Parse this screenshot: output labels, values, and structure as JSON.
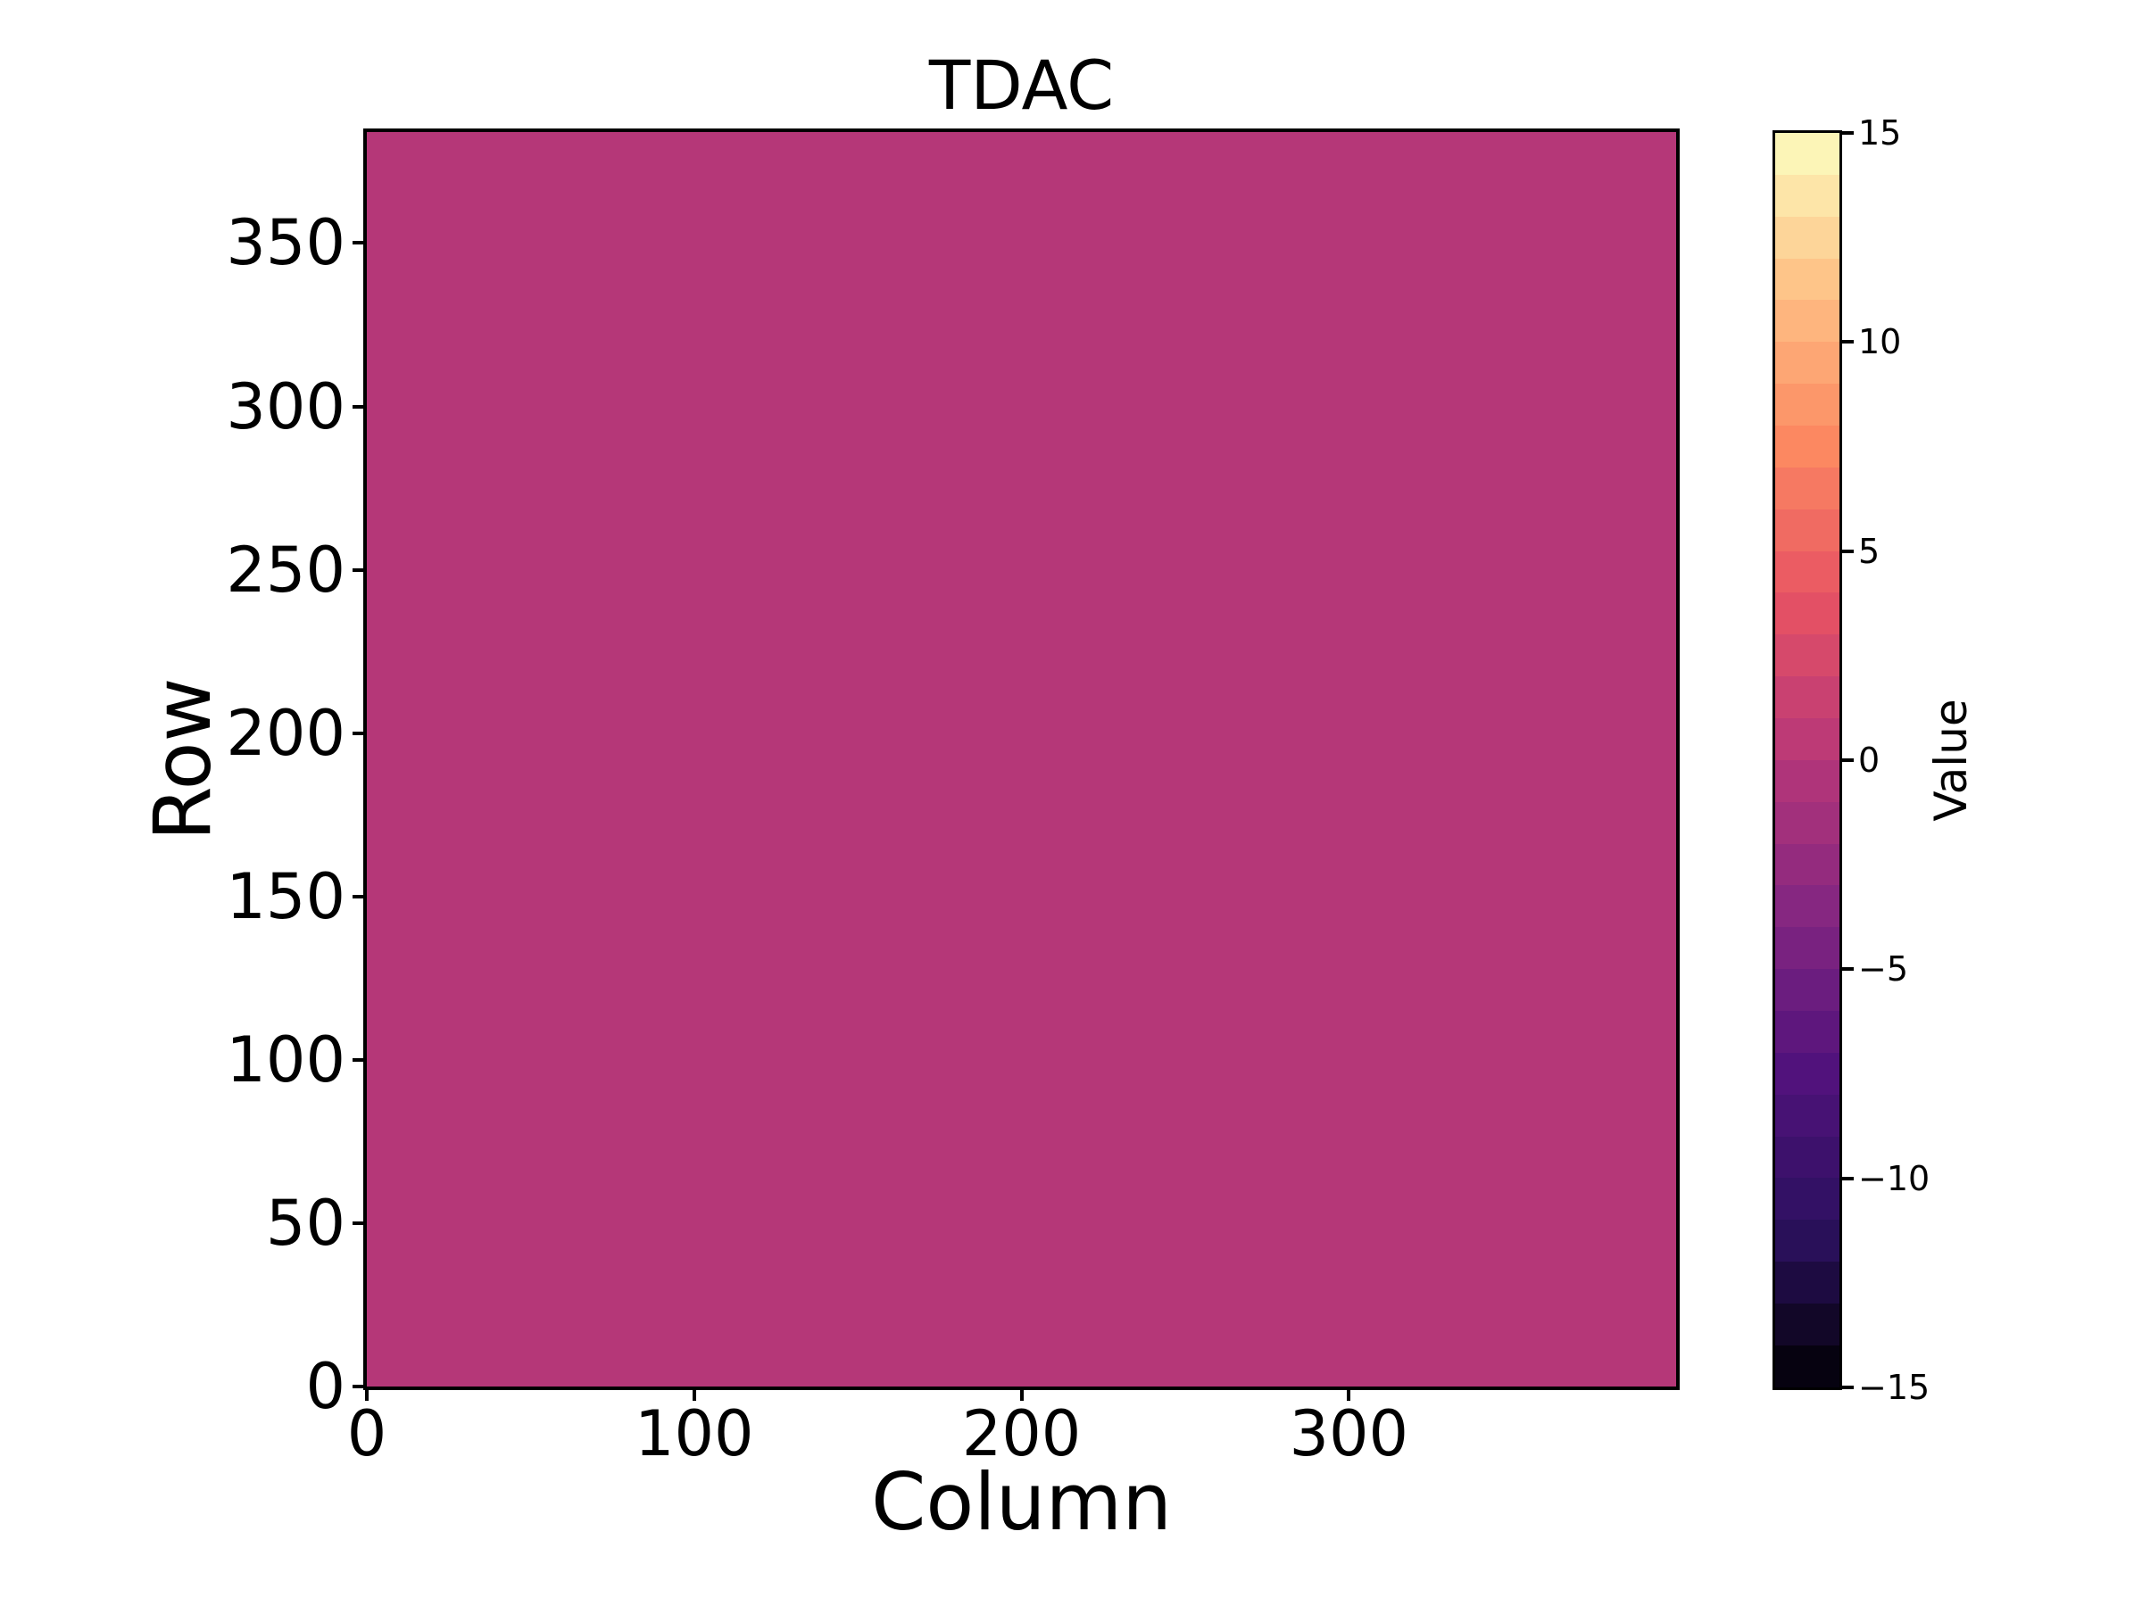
{
  "figure": {
    "background": "#ffffff"
  },
  "chart_data": {
    "type": "heatmap",
    "title": "TDAC",
    "xlabel": "Column",
    "ylabel": "Row",
    "xlim": [
      0,
      400
    ],
    "ylim": [
      0,
      384
    ],
    "grid": {
      "n_cols": 400,
      "n_rows": 384,
      "uniform_value": 0,
      "rendered_color": "#b53778"
    },
    "x_ticks": [
      {
        "value": 0,
        "label": "0"
      },
      {
        "value": 100,
        "label": "100"
      },
      {
        "value": 200,
        "label": "200"
      },
      {
        "value": 300,
        "label": "300"
      }
    ],
    "y_ticks": [
      {
        "value": 0,
        "label": "0"
      },
      {
        "value": 50,
        "label": "50"
      },
      {
        "value": 100,
        "label": "100"
      },
      {
        "value": 150,
        "label": "150"
      },
      {
        "value": 200,
        "label": "200"
      },
      {
        "value": 250,
        "label": "250"
      },
      {
        "value": 300,
        "label": "300"
      },
      {
        "value": 350,
        "label": "350"
      }
    ],
    "colorbar": {
      "label": "Value",
      "vmin": -15,
      "vmax": 15,
      "n_segments": 30,
      "ticks": [
        {
          "value": 15,
          "label": "15"
        },
        {
          "value": 10,
          "label": "10"
        },
        {
          "value": 5,
          "label": "5"
        },
        {
          "value": 0,
          "label": "0"
        },
        {
          "value": -5,
          "label": "−5"
        },
        {
          "value": -10,
          "label": "−10"
        },
        {
          "value": -15,
          "label": "−15"
        }
      ],
      "colormap": "magma",
      "colormap_anchors": [
        {
          "t": 0.0,
          "color": "#000004"
        },
        {
          "t": 0.125,
          "color": "#2c115f"
        },
        {
          "t": 0.251,
          "color": "#51127c"
        },
        {
          "t": 0.376,
          "color": "#832681"
        },
        {
          "t": 0.502,
          "color": "#b73779"
        },
        {
          "t": 0.627,
          "color": "#e75263"
        },
        {
          "t": 0.753,
          "color": "#fc8961"
        },
        {
          "t": 0.878,
          "color": "#fec287"
        },
        {
          "t": 1.0,
          "color": "#fcfdbf"
        }
      ]
    }
  }
}
